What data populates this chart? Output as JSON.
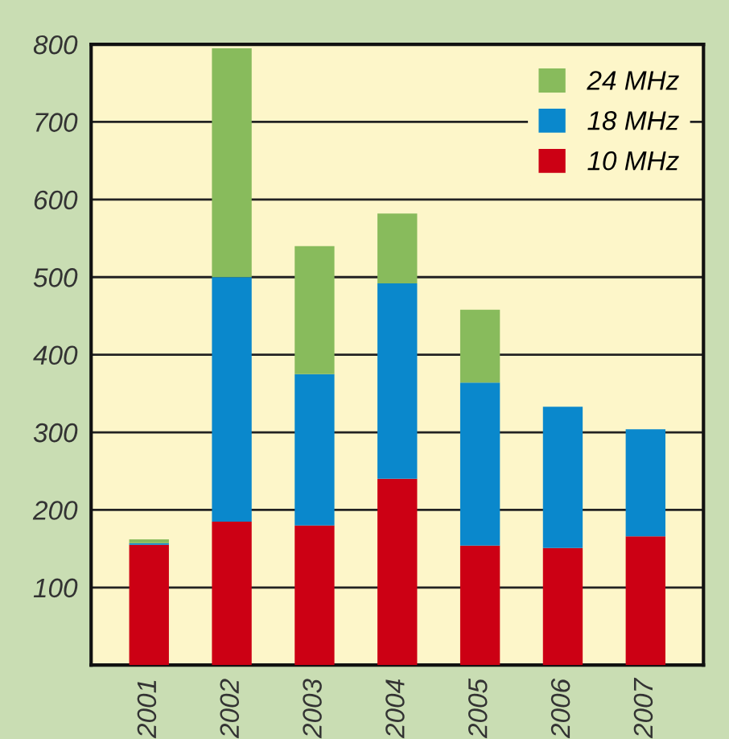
{
  "chart_data": {
    "type": "bar",
    "stacked": true,
    "categories": [
      "2001",
      "2002",
      "2003",
      "2004",
      "2005",
      "2006",
      "2007"
    ],
    "series": [
      {
        "name": "10 MHz",
        "color": "#cc0014",
        "values": [
          155,
          185,
          180,
          240,
          154,
          151,
          166
        ]
      },
      {
        "name": "18 MHz",
        "color": "#0a88cc",
        "values": [
          2,
          315,
          195,
          252,
          210,
          182,
          138
        ]
      },
      {
        "name": "24 MHz",
        "color": "#88bb5c",
        "values": [
          5,
          295,
          165,
          90,
          94,
          null,
          null
        ]
      }
    ],
    "ylim": [
      0,
      800
    ],
    "yticks": [
      {
        "value": 0,
        "label": null
      },
      100,
      200,
      300,
      400,
      500,
      600,
      700,
      800
    ],
    "grid": "y",
    "legend": "top right"
  }
}
